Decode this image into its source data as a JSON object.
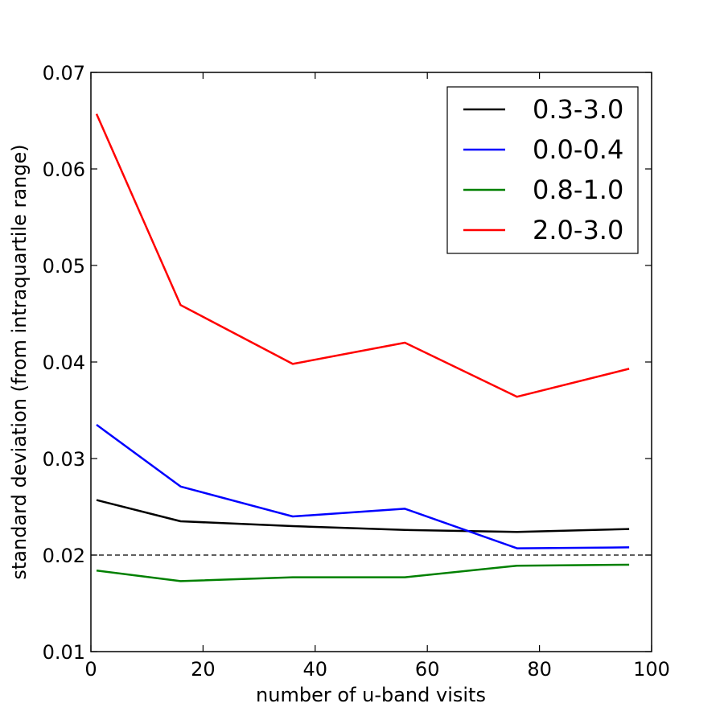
{
  "chart_data": {
    "type": "line",
    "xlabel": "number of u-band visits",
    "ylabel": "standard deviation (from intraquartile range)",
    "xlim": [
      0,
      100
    ],
    "ylim": [
      0.01,
      0.07
    ],
    "x_ticks": [
      "0",
      "20",
      "40",
      "60",
      "80",
      "100"
    ],
    "y_ticks": [
      "0.01",
      "0.02",
      "0.03",
      "0.04",
      "0.05",
      "0.06",
      "0.07"
    ],
    "grid": false,
    "legend_position": "top-right",
    "reference_line": {
      "y": 0.02,
      "style": "dashed",
      "color": "#000000"
    },
    "x": [
      1,
      16,
      36,
      56,
      76,
      96
    ],
    "series": [
      {
        "name": "0.3-3.0",
        "color": "#000000",
        "values": [
          0.0257,
          0.0235,
          0.023,
          0.0226,
          0.0224,
          0.0227
        ]
      },
      {
        "name": "0.0-0.4",
        "color": "#0000ff",
        "values": [
          0.0335,
          0.0271,
          0.024,
          0.0248,
          0.0207,
          0.0208
        ]
      },
      {
        "name": "0.8-1.0",
        "color": "#008000",
        "values": [
          0.0184,
          0.0173,
          0.0177,
          0.0177,
          0.0189,
          0.019
        ]
      },
      {
        "name": "2.0-3.0",
        "color": "#ff0000",
        "values": [
          0.0657,
          0.0459,
          0.0398,
          0.042,
          0.0364,
          0.0393
        ]
      }
    ]
  }
}
